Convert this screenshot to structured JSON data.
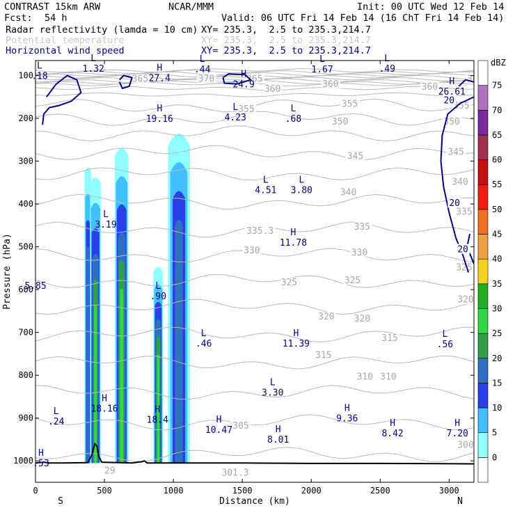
{
  "header": {
    "model": "CONTRAST 15km ARW",
    "org": "NCAR/MMM",
    "init": "Init: 00 UTC Wed 12 Feb 14",
    "fcst_label": "Fcst:",
    "fcst_value": "54 h",
    "valid": "Valid: 06 UTC Fri 14 Feb 14 (16 ChT Fri 14 Feb 14)",
    "fields": [
      {
        "name": "Radar reflectivity (lamda = 10 cm)",
        "xy": "XY= 235.3,  2.5 to 235.3,214.7",
        "color": "#000000"
      },
      {
        "name": "Potential temperature",
        "xy": "XY= 235.3,  2.5 to 235.3,214.7",
        "color": "#c8c8c8"
      },
      {
        "name": "Horizontal wind speed",
        "xy": "XY= 235.3,  2.5 to 235.3,214.7",
        "color": "#000088"
      }
    ]
  },
  "chart_data": {
    "type": "cross-section",
    "xlabel": "Distance (km)",
    "ylabel": "Pressure (hPa)",
    "xlim": [
      0,
      3180
    ],
    "ylim": [
      1050,
      65
    ],
    "x_ticks": [
      0,
      500,
      1000,
      1500,
      2000,
      2500,
      3000
    ],
    "y_ticks": [
      100,
      200,
      300,
      400,
      500,
      600,
      700,
      800,
      900,
      1000
    ],
    "x_end_labels": {
      "left": "S",
      "right": "N"
    },
    "colorbar": {
      "unit": "dBZ",
      "levels": [
        "0",
        "5",
        "10",
        "15",
        "20",
        "25",
        "30",
        "35",
        "40",
        "45",
        "50",
        "55",
        "60",
        "65",
        "70",
        "75"
      ],
      "colors": [
        "#ffffff",
        "#90ffff",
        "#40c0ff",
        "#2840e8",
        "#3070c0",
        "#30a048",
        "#30d848",
        "#20b020",
        "#f8d020",
        "#f0a040",
        "#f07020",
        "#f02010",
        "#c01010",
        "#a03050",
        "#7a2a9a",
        "#b070c0",
        "#ffffff"
      ]
    },
    "reflectivity_columns": [
      {
        "x_center": 380,
        "x_halfwidth": 25,
        "p_top": 310,
        "p_bottom": 1005,
        "peak_dbz": 20
      },
      {
        "x_center": 435,
        "x_halfwidth": 40,
        "p_top": 330,
        "p_bottom": 1005,
        "peak_dbz": 30
      },
      {
        "x_center": 625,
        "x_halfwidth": 50,
        "p_top": 260,
        "p_bottom": 1005,
        "peak_dbz": 30
      },
      {
        "x_center": 890,
        "x_halfwidth": 35,
        "p_top": 540,
        "p_bottom": 1005,
        "peak_dbz": 30
      },
      {
        "x_center": 1040,
        "x_halfwidth": 80,
        "p_top": 220,
        "p_bottom": 1005,
        "peak_dbz": 20
      }
    ],
    "theta_labels": [
      {
        "x": 700,
        "p": 110,
        "text": "365"
      },
      {
        "x": 1180,
        "p": 110,
        "text": "370"
      },
      {
        "x": 1530,
        "p": 110,
        "text": "365"
      },
      {
        "x": 1660,
        "p": 133,
        "text": "360"
      },
      {
        "x": 2080,
        "p": 122,
        "text": "360"
      },
      {
        "x": 2800,
        "p": 128,
        "text": "360"
      },
      {
        "x": 3130,
        "p": 110,
        "text": "365"
      },
      {
        "x": 1470,
        "p": 180,
        "text": "355"
      },
      {
        "x": 2220,
        "p": 168,
        "text": "355"
      },
      {
        "x": 3030,
        "p": 172,
        "text": "355"
      },
      {
        "x": 2150,
        "p": 210,
        "text": "350"
      },
      {
        "x": 2960,
        "p": 210,
        "text": "350"
      },
      {
        "x": 2260,
        "p": 290,
        "text": "345"
      },
      {
        "x": 2990,
        "p": 280,
        "text": "345"
      },
      {
        "x": 3020,
        "p": 350,
        "text": "340"
      },
      {
        "x": 2210,
        "p": 375,
        "text": "340"
      },
      {
        "x": 3050,
        "p": 420,
        "text": "335"
      },
      {
        "x": 2310,
        "p": 455,
        "text": "335"
      },
      {
        "x": 1530,
        "p": 465,
        "text": "335.3"
      },
      {
        "x": 1510,
        "p": 510,
        "text": "330"
      },
      {
        "x": 2290,
        "p": 515,
        "text": "330"
      },
      {
        "x": 3050,
        "p": 550,
        "text": "325"
      },
      {
        "x": 2240,
        "p": 580,
        "text": "325"
      },
      {
        "x": 1780,
        "p": 585,
        "text": "325"
      },
      {
        "x": 2050,
        "p": 665,
        "text": "320"
      },
      {
        "x": 2310,
        "p": 670,
        "text": "320"
      },
      {
        "x": 3060,
        "p": 625,
        "text": "320"
      },
      {
        "x": 2510,
        "p": 715,
        "text": "315"
      },
      {
        "x": 2030,
        "p": 755,
        "text": "315"
      },
      {
        "x": 2330,
        "p": 805,
        "text": "310"
      },
      {
        "x": 2500,
        "p": 805,
        "text": "310"
      },
      {
        "x": 1430,
        "p": 920,
        "text": "305"
      },
      {
        "x": 3060,
        "p": 965,
        "text": "300"
      },
      {
        "x": 1350,
        "p": 1030,
        "text": "301.3"
      },
      {
        "x": 500,
        "p": 1025,
        "text": "29"
      }
    ],
    "theta_lines_p": [
      88,
      92,
      96,
      100,
      104,
      108,
      112,
      116,
      120,
      130,
      145,
      170,
      200,
      235,
      280,
      330,
      395,
      460,
      520,
      580,
      640,
      705,
      770,
      840,
      910,
      985
    ],
    "wind_labels": [
      {
        "x": 2960,
        "p": 160,
        "text": "20"
      },
      {
        "x": 3000,
        "p": 400,
        "text": "20"
      },
      {
        "x": 3060,
        "p": 508,
        "text": "20"
      }
    ],
    "hl_labels": [
      {
        "x": 30,
        "p": 85,
        "letter": "L",
        "value": ".18"
      },
      {
        "x": 420,
        "p": 68,
        "letter": "L",
        "value": "1.32"
      },
      {
        "x": 900,
        "p": 90,
        "letter": "H",
        "value": "27.4"
      },
      {
        "x": 1210,
        "p": 70,
        "letter": "L",
        "value": ".44"
      },
      {
        "x": 1510,
        "p": 105,
        "letter": "H",
        "value": "24.9"
      },
      {
        "x": 2080,
        "p": 70,
        "letter": "L",
        "value": "1.67"
      },
      {
        "x": 2550,
        "p": 68,
        "letter": "L",
        "value": ".49"
      },
      {
        "x": 3020,
        "p": 122,
        "letter": "H",
        "value": "26.61"
      },
      {
        "x": 900,
        "p": 185,
        "letter": "H",
        "value": "19.16"
      },
      {
        "x": 1450,
        "p": 182,
        "letter": "L",
        "value": "4.23"
      },
      {
        "x": 1870,
        "p": 185,
        "letter": "L",
        "value": ".68"
      },
      {
        "x": 1670,
        "p": 352,
        "letter": "L",
        "value": "4.51"
      },
      {
        "x": 1930,
        "p": 352,
        "letter": "L",
        "value": "3.80"
      },
      {
        "x": 510,
        "p": 432,
        "letter": "L",
        "value": "3.19"
      },
      {
        "x": 1870,
        "p": 475,
        "letter": "H",
        "value": "11.78"
      },
      {
        "x": 0,
        "p": 575,
        "letter": "",
        "value": "5.85"
      },
      {
        "x": 890,
        "p": 600,
        "letter": "L",
        "value": ".90"
      },
      {
        "x": 1220,
        "p": 710,
        "letter": "L",
        "value": ".46"
      },
      {
        "x": 1890,
        "p": 710,
        "letter": "H",
        "value": "11.39"
      },
      {
        "x": 2970,
        "p": 712,
        "letter": "L",
        "value": ".56"
      },
      {
        "x": 1720,
        "p": 825,
        "letter": "L",
        "value": "3.30"
      },
      {
        "x": 500,
        "p": 862,
        "letter": "H",
        "value": "18.16"
      },
      {
        "x": 885,
        "p": 888,
        "letter": "H",
        "value": "18.4"
      },
      {
        "x": 150,
        "p": 892,
        "letter": "L",
        "value": ".24"
      },
      {
        "x": 2260,
        "p": 885,
        "letter": "H",
        "value": "9.36"
      },
      {
        "x": 1330,
        "p": 912,
        "letter": "H",
        "value": "10.47"
      },
      {
        "x": 1760,
        "p": 935,
        "letter": "H",
        "value": "8.01"
      },
      {
        "x": 2590,
        "p": 920,
        "letter": "H",
        "value": "8.42"
      },
      {
        "x": 3060,
        "p": 920,
        "letter": "H",
        "value": "7.20"
      },
      {
        "x": 40,
        "p": 990,
        "letter": "H",
        "value": ".53"
      }
    ],
    "terrain": [
      [
        0,
        1005
      ],
      [
        60,
        1003
      ],
      [
        100,
        1005
      ],
      [
        200,
        1005
      ],
      [
        380,
        1004
      ],
      [
        410,
        985
      ],
      [
        430,
        960
      ],
      [
        445,
        965
      ],
      [
        460,
        990
      ],
      [
        480,
        1003
      ],
      [
        600,
        1004
      ],
      [
        700,
        1005
      ],
      [
        770,
        1002
      ],
      [
        790,
        1000
      ],
      [
        810,
        1005
      ],
      [
        1100,
        1005
      ],
      [
        1500,
        1005
      ],
      [
        2000,
        1006
      ],
      [
        2500,
        1006
      ],
      [
        3180,
        1007
      ]
    ]
  }
}
